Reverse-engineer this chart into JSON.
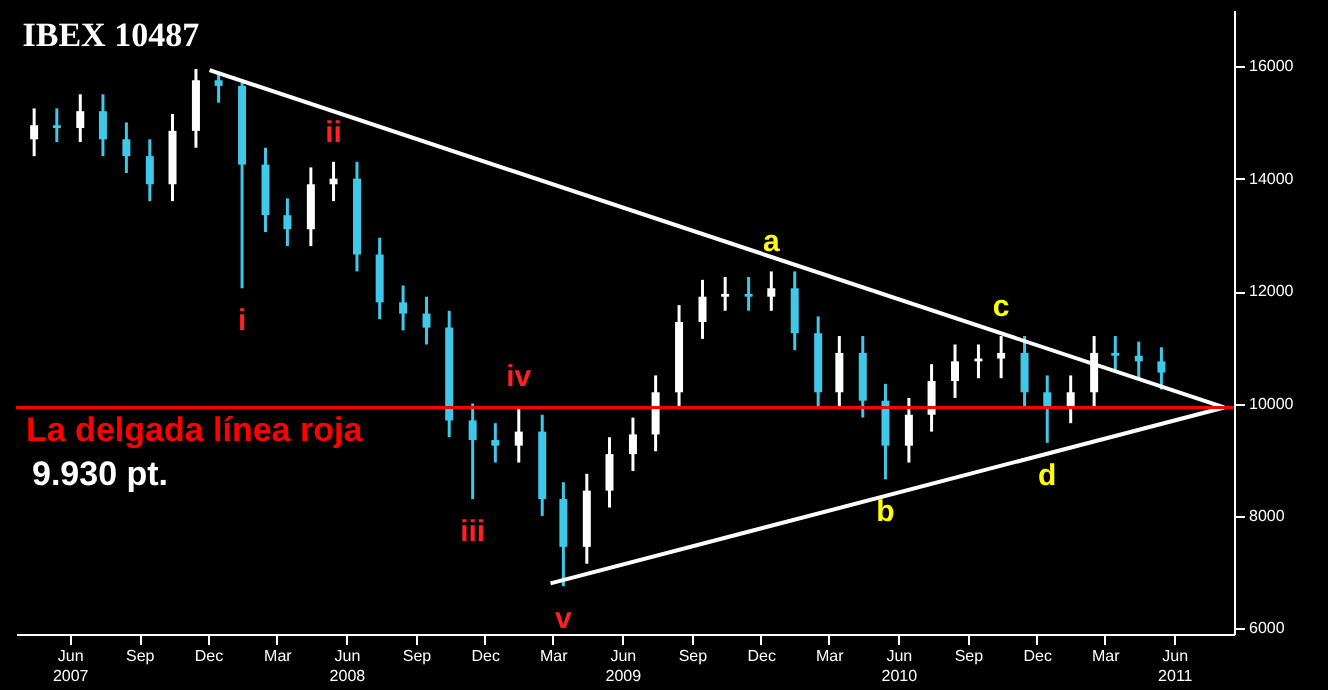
{
  "chart_data": {
    "type": "candlestick",
    "title": "IBEX 10487",
    "x": [
      "2007-04-15",
      "2007-05-15",
      "2007-06-15",
      "2007-07-15",
      "2007-08-15",
      "2007-09-15",
      "2007-10-15",
      "2007-11-15",
      "2007-12-15",
      "2008-01-15",
      "2008-02-15",
      "2008-03-15",
      "2008-04-15",
      "2008-05-15",
      "2008-06-15",
      "2008-07-15",
      "2008-08-15",
      "2008-09-15",
      "2008-10-15",
      "2008-11-15",
      "2008-12-15",
      "2009-01-15",
      "2009-02-15",
      "2009-03-15",
      "2009-04-15",
      "2009-05-15",
      "2009-06-15",
      "2009-07-15",
      "2009-08-15",
      "2009-09-15",
      "2009-10-15",
      "2009-11-15",
      "2009-12-15",
      "2010-01-15",
      "2010-02-15",
      "2010-03-15",
      "2010-04-15",
      "2010-05-15",
      "2010-06-15",
      "2010-07-15",
      "2010-08-15",
      "2010-09-15",
      "2010-10-15",
      "2010-11-15",
      "2010-12-15",
      "2011-01-15",
      "2011-02-15",
      "2011-03-15",
      "2011-04-15",
      "2011-05-15"
    ],
    "series": [
      {
        "colors": [
          "#ffffff",
          "#40c8e8",
          "#ffffff",
          "#40c8e8",
          "#40c8e8",
          "#40c8e8",
          "#ffffff",
          "#ffffff",
          "#40c8e8",
          "#40c8e8",
          "#40c8e8",
          "#40c8e8",
          "#ffffff",
          "#ffffff",
          "#40c8e8",
          "#40c8e8",
          "#40c8e8",
          "#40c8e8",
          "#40c8e8",
          "#40c8e8",
          "#40c8e8",
          "#ffffff",
          "#40c8e8",
          "#40c8e8",
          "#ffffff",
          "#ffffff",
          "#ffffff",
          "#ffffff",
          "#ffffff",
          "#ffffff",
          "#ffffff",
          "#40c8e8",
          "#ffffff",
          "#40c8e8",
          "#40c8e8",
          "#ffffff",
          "#40c8e8",
          "#40c8e8",
          "#ffffff",
          "#ffffff",
          "#ffffff",
          "#ffffff",
          "#ffffff",
          "#40c8e8",
          "#40c8e8",
          "#ffffff",
          "#ffffff",
          "#40c8e8",
          "#40c8e8",
          "#40c8e8"
        ],
        "ohlc": [
          [
            14700,
            15250,
            14400,
            14950
          ],
          [
            14950,
            15250,
            14650,
            14900
          ],
          [
            14900,
            15500,
            14650,
            15200
          ],
          [
            15200,
            15500,
            14400,
            14700
          ],
          [
            14700,
            15000,
            14100,
            14400
          ],
          [
            14400,
            14700,
            13600,
            13900
          ],
          [
            13900,
            15150,
            13600,
            14850
          ],
          [
            14850,
            15950,
            14550,
            15750
          ],
          [
            15750,
            15900,
            15350,
            15650
          ],
          [
            15650,
            15700,
            12050,
            14250
          ],
          [
            14250,
            14550,
            13050,
            13350
          ],
          [
            13350,
            13650,
            12800,
            13100
          ],
          [
            13100,
            14200,
            12800,
            13900
          ],
          [
            13900,
            14300,
            13600,
            14000
          ],
          [
            14000,
            14300,
            12350,
            12650
          ],
          [
            12650,
            12950,
            11500,
            11800
          ],
          [
            11800,
            12100,
            11300,
            11600
          ],
          [
            11600,
            11900,
            11050,
            11350
          ],
          [
            11350,
            11650,
            9400,
            9700
          ],
          [
            9700,
            10000,
            8300,
            9350
          ],
          [
            9350,
            9650,
            8950,
            9250
          ],
          [
            9250,
            9950,
            8950,
            9500
          ],
          [
            9500,
            9800,
            8000,
            8300
          ],
          [
            8300,
            8600,
            6750,
            7450
          ],
          [
            7450,
            8750,
            7150,
            8450
          ],
          [
            8450,
            9400,
            8150,
            9100
          ],
          [
            9100,
            9750,
            8800,
            9450
          ],
          [
            9450,
            10500,
            9150,
            10200
          ],
          [
            10200,
            11750,
            9900,
            11450
          ],
          [
            11450,
            12200,
            11150,
            11900
          ],
          [
            11900,
            12250,
            11650,
            11950
          ],
          [
            11950,
            12250,
            11650,
            11900
          ],
          [
            11900,
            12350,
            11650,
            12050
          ],
          [
            12050,
            12350,
            10950,
            11250
          ],
          [
            11250,
            11550,
            9900,
            10200
          ],
          [
            10200,
            11200,
            9900,
            10900
          ],
          [
            10900,
            11200,
            9750,
            10050
          ],
          [
            10050,
            10350,
            8650,
            9250
          ],
          [
            9250,
            10100,
            8950,
            9800
          ],
          [
            9800,
            10700,
            9500,
            10400
          ],
          [
            10400,
            11050,
            10100,
            10750
          ],
          [
            10750,
            11050,
            10450,
            10800
          ],
          [
            10800,
            11200,
            10450,
            10900
          ],
          [
            10900,
            11200,
            9900,
            10200
          ],
          [
            10200,
            10500,
            9300,
            9950
          ],
          [
            9950,
            10500,
            9650,
            10200
          ],
          [
            10200,
            11200,
            9900,
            10900
          ],
          [
            10900,
            11200,
            10550,
            10850
          ],
          [
            10850,
            11100,
            10450,
            10750
          ],
          [
            10750,
            11000,
            10250,
            10550
          ]
        ]
      },
      {
        "type": "line",
        "color": "#ffffff",
        "x": [
          "2007-12-03",
          "2011-08-06"
        ],
        "values": [
          15930,
          9930
        ]
      },
      {
        "type": "line",
        "color": "#ffffff",
        "x": [
          "2009-02-26",
          "2011-08-06"
        ],
        "values": [
          6800,
          9930
        ]
      }
    ],
    "xlim": [
      "2007-03-22",
      "2011-08-19"
    ],
    "xticks": [
      {
        "value": "2007-06-01",
        "label": "Jun\n2007"
      },
      {
        "value": "2007-09-01",
        "label": "Sep"
      },
      {
        "value": "2007-12-01",
        "label": "Dec"
      },
      {
        "value": "2008-03-01",
        "label": "Mar"
      },
      {
        "value": "2008-06-01",
        "label": "Jun\n2008"
      },
      {
        "value": "2008-09-01",
        "label": "Sep"
      },
      {
        "value": "2008-12-01",
        "label": "Dec"
      },
      {
        "value": "2009-03-01",
        "label": "Mar"
      },
      {
        "value": "2009-06-01",
        "label": "Jun\n2009"
      },
      {
        "value": "2009-09-01",
        "label": "Sep"
      },
      {
        "value": "2009-12-01",
        "label": "Dec"
      },
      {
        "value": "2010-03-01",
        "label": "Mar"
      },
      {
        "value": "2010-06-01",
        "label": "Jun\n2010"
      },
      {
        "value": "2010-09-01",
        "label": "Sep"
      },
      {
        "value": "2010-12-01",
        "label": "Dec"
      },
      {
        "value": "2011-03-01",
        "label": "Mar"
      },
      {
        "value": "2011-06-01",
        "label": "Jun\n2011"
      }
    ],
    "ylim": [
      5900,
      17000
    ],
    "yticks": [
      6000,
      8000,
      10000,
      12000,
      14000,
      16000
    ],
    "ref_lines": [
      {
        "axis": "y",
        "value": 9930,
        "label": "La delgada línea roja",
        "color": "#ff0000"
      }
    ],
    "annotations": [
      {
        "text": "i",
        "x": "2008-01-15",
        "y": 12050
      },
      {
        "text": "ii",
        "x": "2008-05-15",
        "y": 14300
      },
      {
        "text": "iii",
        "x": "2008-11-15",
        "y": 8300
      },
      {
        "text": "iv",
        "x": "2009-01-15",
        "y": 9950
      },
      {
        "text": "v",
        "x": "2009-03-15",
        "y": 6750
      },
      {
        "text": "a",
        "x": "2009-12-15",
        "y": 12350
      },
      {
        "text": "b",
        "x": "2010-05-15",
        "y": 8650
      },
      {
        "text": "c",
        "x": "2010-10-15",
        "y": 11200
      },
      {
        "text": "d",
        "x": "2010-12-15",
        "y": 9300
      },
      "9.930 pt."
    ],
    "grid": false
  }
}
